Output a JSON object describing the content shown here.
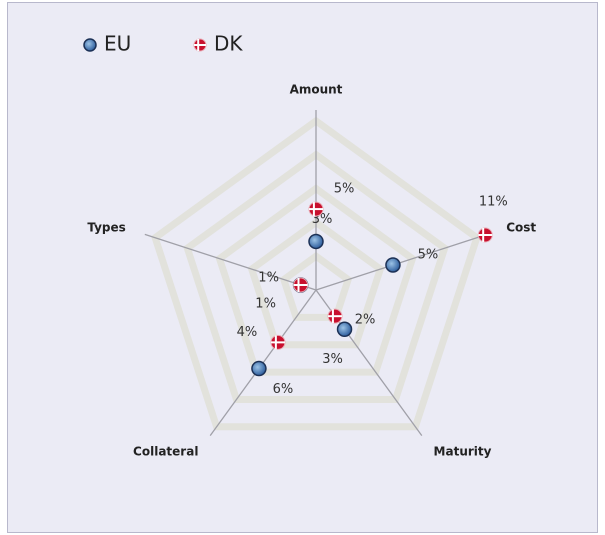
{
  "chart_data": {
    "type": "radar",
    "categories": [
      "Amount",
      "Cost",
      "Maturity",
      "Collateral",
      "Types"
    ],
    "rlim": [
      0,
      11
    ],
    "grid": true,
    "legend": "top-left",
    "series": [
      {
        "name": "EU",
        "color": "#3a6fb0",
        "values": [
          3,
          5,
          3,
          6,
          1
        ],
        "value_labels": [
          "3%",
          "5%",
          "3%",
          "6%",
          "1%"
        ]
      },
      {
        "name": "DK",
        "color": "#c8102e",
        "values": [
          5,
          11,
          2,
          4,
          1
        ],
        "value_labels": [
          "5%",
          "11%",
          "2%",
          "4%",
          "1%"
        ]
      }
    ]
  }
}
